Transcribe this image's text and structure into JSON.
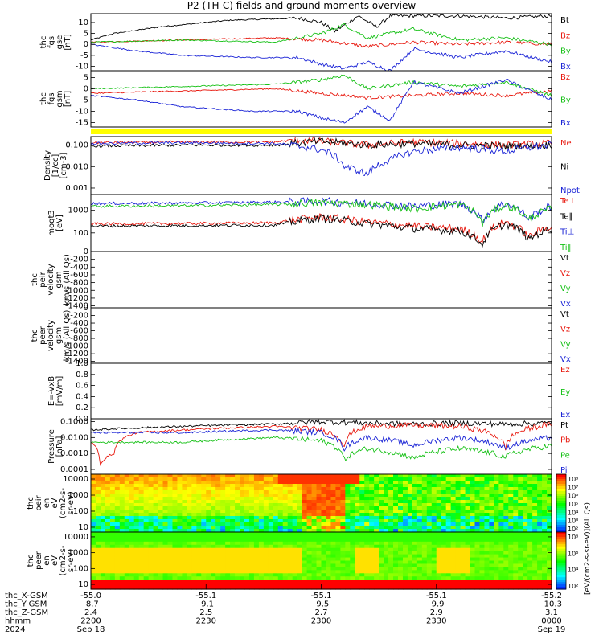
{
  "title": "P2 (TH-C) fields and ground moments overview",
  "colors": {
    "black": "#000000",
    "red": "#e8190f",
    "green": "#16c116",
    "blue": "#1a23d6",
    "yellow": "#ffff00",
    "axis": "#000000"
  },
  "chart_data": [
    {
      "type": "line",
      "panel": "fgs-gse",
      "ylabel": [
        "thc",
        "fgs",
        "gse",
        "[nT]"
      ],
      "yticks": [
        "10",
        "5",
        "0",
        "-5",
        "-10"
      ],
      "ytick_values": [
        10,
        5,
        0,
        -5,
        -10
      ],
      "ylim": [
        -12,
        14
      ],
      "legend": [
        "Bt",
        "Bz",
        "By",
        "Bx"
      ],
      "series": [
        {
          "name": "Bt",
          "color": "black",
          "x": [
            0,
            0.05,
            0.15,
            0.3,
            0.45,
            0.5,
            0.53,
            0.58,
            0.62,
            0.65,
            0.7,
            0.8,
            0.9,
            1.0
          ],
          "y": [
            2,
            5,
            8,
            11,
            12,
            10,
            6,
            13,
            8,
            13,
            13,
            13,
            12,
            13
          ]
        },
        {
          "name": "Bz",
          "color": "red",
          "x": [
            0,
            0.2,
            0.4,
            0.5,
            0.6,
            0.7,
            0.8,
            0.9,
            1.0
          ],
          "y": [
            1,
            2,
            3,
            2,
            -1,
            1,
            0,
            1,
            0
          ]
        },
        {
          "name": "By",
          "color": "green",
          "x": [
            0,
            0.2,
            0.4,
            0.5,
            0.55,
            0.6,
            0.7,
            0.8,
            0.9,
            1.0
          ],
          "y": [
            1,
            2,
            1,
            5,
            9,
            3,
            7,
            2,
            3,
            0
          ]
        },
        {
          "name": "Bx",
          "color": "blue",
          "x": [
            0,
            0.1,
            0.2,
            0.35,
            0.45,
            0.5,
            0.55,
            0.6,
            0.65,
            0.7,
            0.8,
            0.9,
            1.0
          ],
          "y": [
            0,
            -3,
            -5,
            -6,
            -6,
            -9,
            -11,
            -8,
            -12,
            -2,
            -6,
            -3,
            -8
          ]
        }
      ]
    },
    {
      "type": "line",
      "panel": "fgs-gsm",
      "ylabel": [
        "thc",
        "fgs",
        "gsm",
        "[nT]"
      ],
      "yticks": [
        "5",
        "0",
        "-5",
        "-10",
        "-15"
      ],
      "ytick_values": [
        5,
        0,
        -5,
        -10,
        -15
      ],
      "ylim": [
        -17,
        8
      ],
      "legend": [
        "Bz",
        "By",
        "Bx"
      ],
      "series": [
        {
          "name": "Bz",
          "color": "red",
          "x": [
            0,
            0.2,
            0.4,
            0.5,
            0.6,
            0.7,
            0.8,
            0.9,
            1.0
          ],
          "y": [
            -2,
            -1,
            0,
            -2,
            -4,
            -3,
            -2,
            -3,
            -1
          ]
        },
        {
          "name": "By",
          "color": "green",
          "x": [
            0,
            0.2,
            0.4,
            0.5,
            0.55,
            0.6,
            0.7,
            0.8,
            0.9,
            1.0
          ],
          "y": [
            0,
            1,
            2,
            4,
            6,
            0,
            3,
            1,
            3,
            -3
          ]
        },
        {
          "name": "Bx",
          "color": "blue",
          "x": [
            0,
            0.1,
            0.2,
            0.35,
            0.45,
            0.5,
            0.55,
            0.6,
            0.65,
            0.7,
            0.8,
            0.9,
            1.0
          ],
          "y": [
            -3,
            -5,
            -8,
            -10,
            -10,
            -13,
            -15,
            -8,
            -14,
            3,
            -2,
            4,
            -5
          ]
        }
      ]
    },
    {
      "type": "table",
      "panel": "mode-bar",
      "color": "yellow"
    },
    {
      "type": "line",
      "panel": "density",
      "ylabel": [
        "Density",
        "[1/cc]",
        "[cm-3]"
      ],
      "scale": "log",
      "yticks": [
        "0.100",
        "0.010",
        "0.001"
      ],
      "ytick_values": [
        0.1,
        0.01,
        0.001
      ],
      "ylim": [
        0.0005,
        0.25
      ],
      "legend": [
        "Ne",
        "Ni",
        "Npot"
      ],
      "series": [
        {
          "name": "Ne",
          "color": "red",
          "x": [
            0,
            0.2,
            0.4,
            0.45,
            0.5,
            0.6,
            0.7,
            0.8,
            0.9,
            1.0
          ],
          "y": [
            0.13,
            0.14,
            0.14,
            0.18,
            0.15,
            0.1,
            0.14,
            0.12,
            0.1,
            0.12
          ]
        },
        {
          "name": "Ni",
          "color": "black",
          "x": [
            0,
            0.2,
            0.4,
            0.5,
            0.6,
            0.7,
            0.8,
            0.9,
            1.0
          ],
          "y": [
            0.09,
            0.1,
            0.1,
            0.15,
            0.1,
            0.12,
            0.1,
            0.09,
            0.1
          ]
        },
        {
          "name": "Npot",
          "color": "blue",
          "x": [
            0,
            0.2,
            0.4,
            0.5,
            0.55,
            0.6,
            0.65,
            0.7,
            0.8,
            0.9,
            1.0
          ],
          "y": [
            0.12,
            0.13,
            0.12,
            0.06,
            0.01,
            0.004,
            0.02,
            0.05,
            0.08,
            0.05,
            0.1
          ]
        }
      ]
    },
    {
      "type": "line",
      "panel": "temperature",
      "ylabel": [
        "moqt3",
        "[eV]"
      ],
      "scale": "log",
      "yticks": [
        "1000",
        "100"
      ],
      "ytick_values": [
        1000,
        100
      ],
      "ylim": [
        15,
        5000
      ],
      "legend": [
        "Te⊥",
        "Te∥",
        "Ti⊥",
        "Ti∥"
      ],
      "series": [
        {
          "name": "Te⊥",
          "color": "red",
          "x": [
            0,
            0.2,
            0.4,
            0.5,
            0.6,
            0.7,
            0.8,
            0.85,
            0.9,
            0.95,
            1.0
          ],
          "y": [
            250,
            260,
            280,
            500,
            300,
            200,
            150,
            40,
            300,
            60,
            200
          ]
        },
        {
          "name": "Te∥",
          "color": "black",
          "x": [
            0,
            0.2,
            0.4,
            0.5,
            0.6,
            0.7,
            0.8,
            0.85,
            0.9,
            0.95,
            1.0
          ],
          "y": [
            200,
            210,
            220,
            450,
            250,
            160,
            120,
            30,
            250,
            50,
            150
          ]
        },
        {
          "name": "Ti⊥",
          "color": "blue",
          "x": [
            0,
            0.2,
            0.4,
            0.5,
            0.6,
            0.7,
            0.8,
            0.85,
            0.9,
            0.95,
            1.0
          ],
          "y": [
            2000,
            2100,
            2300,
            2500,
            2000,
            1500,
            2000,
            300,
            2000,
            400,
            1500
          ]
        },
        {
          "name": "Ti∥",
          "color": "green",
          "x": [
            0,
            0.2,
            0.4,
            0.5,
            0.6,
            0.7,
            0.8,
            0.85,
            0.9,
            0.95,
            1.0
          ],
          "y": [
            1500,
            1600,
            1800,
            2200,
            1800,
            1200,
            1800,
            250,
            1700,
            350,
            1200
          ]
        }
      ]
    },
    {
      "type": "line",
      "panel": "peir-velocity",
      "ylabel": [
        "thc",
        "peir",
        "velocity",
        "gsm",
        "km/s (All Qs)"
      ],
      "yticks": [
        "0",
        "-200",
        "-400",
        "-600",
        "-800",
        "-1000",
        "-1200",
        "-1400"
      ],
      "ytick_values": [
        0,
        -200,
        -400,
        -600,
        -800,
        -1000,
        -1200,
        -1400
      ],
      "ylim": [
        -1450,
        0
      ],
      "legend": [
        "Vt",
        "Vz",
        "Vy",
        "Vx"
      ],
      "series": []
    },
    {
      "type": "line",
      "panel": "peer-velocity",
      "ylabel": [
        "thc",
        "peer",
        "velocity",
        "gsm",
        "km/s (All Qs)"
      ],
      "yticks": [
        "0",
        "-200",
        "-400",
        "-600",
        "-800",
        "-1000",
        "-1200",
        "-1400"
      ],
      "ytick_values": [
        0,
        -200,
        -400,
        -600,
        -800,
        -1000,
        -1200,
        -1400
      ],
      "ylim": [
        -1450,
        0
      ],
      "legend": [
        "Vt",
        "Vz",
        "Vy",
        "Vx"
      ],
      "series": []
    },
    {
      "type": "line",
      "panel": "efield",
      "ylabel": [
        "E=-VxB",
        "[mV/m]"
      ],
      "yticks": [
        "1.0",
        "0.8",
        "0.6",
        "0.4",
        "0.2",
        "0.0"
      ],
      "ytick_values": [
        1,
        0.8,
        0.6,
        0.4,
        0.2,
        0
      ],
      "ylim": [
        0,
        1
      ],
      "legend": [
        "Ez",
        "Ey",
        "Ex"
      ],
      "series": []
    },
    {
      "type": "line",
      "panel": "pressure",
      "ylabel": [
        "Pressure",
        "[nPa]"
      ],
      "scale": "log",
      "yticks": [
        "0.1000",
        "0.0100",
        "0.0010",
        "0.0001"
      ],
      "ytick_values": [
        0.1,
        0.01,
        0.001,
        0.0001
      ],
      "ylim": [
        5e-05,
        0.15
      ],
      "legend": [
        "Pt",
        "Pb",
        "Pe",
        "Pi"
      ],
      "series": [
        {
          "name": "Pt",
          "color": "black",
          "x": [
            0,
            0.2,
            0.4,
            0.5,
            0.6,
            0.7,
            0.8,
            0.9,
            1.0
          ],
          "y": [
            0.03,
            0.05,
            0.07,
            0.1,
            0.08,
            0.07,
            0.08,
            0.07,
            0.08
          ]
        },
        {
          "name": "Pb",
          "color": "red",
          "x": [
            0,
            0.02,
            0.05,
            0.1,
            0.2,
            0.4,
            0.5,
            0.55,
            0.6,
            0.7,
            0.8,
            0.9,
            1.0
          ],
          "y": [
            0.005,
            0.0002,
            0.001,
            0.02,
            0.03,
            0.05,
            0.03,
            0.003,
            0.05,
            0.06,
            0.05,
            0.002,
            0.07
          ]
        },
        {
          "name": "Pe",
          "color": "green",
          "x": [
            0,
            0.2,
            0.4,
            0.5,
            0.55,
            0.6,
            0.7,
            0.8,
            0.9,
            1.0
          ],
          "y": [
            0.005,
            0.005,
            0.01,
            0.006,
            0.0004,
            0.002,
            0.0005,
            0.002,
            0.0006,
            0.003
          ]
        },
        {
          "name": "Pi",
          "color": "blue",
          "x": [
            0,
            0.2,
            0.4,
            0.5,
            0.55,
            0.6,
            0.7,
            0.8,
            0.9,
            1.0
          ],
          "y": [
            0.02,
            0.02,
            0.03,
            0.02,
            0.002,
            0.01,
            0.003,
            0.01,
            0.002,
            0.01
          ]
        }
      ]
    },
    {
      "type": "heatmap",
      "panel": "peir-spectrogram",
      "ylabel": [
        "thc",
        "peir",
        "en",
        "eV",
        "(cm2-s-",
        "sr-eV)"
      ],
      "scale": "log",
      "yticks": [
        "10000",
        "1000",
        "100",
        "10"
      ],
      "ytick_values": [
        10000,
        1000,
        100,
        10
      ],
      "ylim": [
        5,
        20000
      ],
      "colorbar_ticks": [
        "10⁸",
        "10⁷",
        "10⁶",
        "10⁵",
        "10⁴",
        "10³",
        "10²"
      ],
      "colorbar_label": "[eV/(cm2-s-sr-eV)](All Qs)"
    },
    {
      "type": "heatmap",
      "panel": "peer-spectrogram",
      "ylabel": [
        "thc",
        "peer",
        "en",
        "eV",
        "(cm2-s-",
        "sr-eV)"
      ],
      "scale": "log",
      "yticks": [
        "10000",
        "1000",
        "100",
        "10"
      ],
      "ytick_values": [
        10000,
        1000,
        100,
        10
      ],
      "ylim": [
        5,
        20000
      ],
      "colorbar_ticks": [
        "10⁸",
        "10⁶",
        "10⁴",
        "10²"
      ],
      "colorbar_label": "[eV/(cm2-s-sr-eV)](All Qs)"
    }
  ],
  "xaxis": {
    "row_labels": [
      "thc_X-GSM",
      "thc_Y-GSM",
      "thc_Z-GSM",
      "hhmm",
      "2024"
    ],
    "ticks": [
      {
        "v": 0,
        "rows": [
          "-55.0",
          "-8.7",
          "2.4",
          "2200",
          "Sep 18"
        ]
      },
      {
        "v": 0.25,
        "rows": [
          "-55.1",
          "-9.1",
          "2.5",
          "2230",
          ""
        ]
      },
      {
        "v": 0.5,
        "rows": [
          "-55.1",
          "-9.5",
          "2.7",
          "2300",
          ""
        ]
      },
      {
        "v": 0.75,
        "rows": [
          "-55.1",
          "-9.9",
          "2.9",
          "2330",
          ""
        ]
      },
      {
        "v": 1,
        "rows": [
          "-55.2",
          "-10.3",
          "3.1",
          "0000",
          "Sep 19"
        ]
      }
    ]
  }
}
